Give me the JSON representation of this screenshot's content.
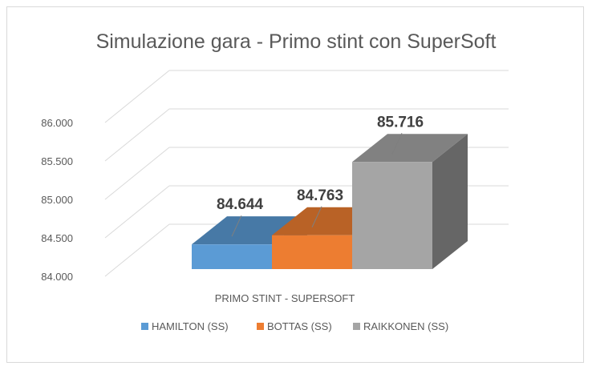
{
  "chart_data": {
    "type": "bar",
    "title": "Simulazione gara - Primo stint con SuperSoft",
    "categories": [
      "PRIMO STINT - SUPERSOFT"
    ],
    "series": [
      {
        "name": "HAMILTON (SS)",
        "values": [
          84.644
        ],
        "label": "84.644",
        "color": "#5b9bd5"
      },
      {
        "name": "BOTTAS (SS)",
        "values": [
          84.763
        ],
        "label": "84.763",
        "color": "#ed7d31"
      },
      {
        "name": "RAIKKONEN (SS)",
        "values": [
          85.716
        ],
        "label": "85.716",
        "color": "#a5a5a5"
      }
    ],
    "yticks": [
      "84.000",
      "84.500",
      "85.000",
      "85.500",
      "86.000"
    ],
    "ylim": [
      84.0,
      86.0
    ],
    "grid": true,
    "legend": "bottom",
    "style": "3d-clustered-column"
  }
}
